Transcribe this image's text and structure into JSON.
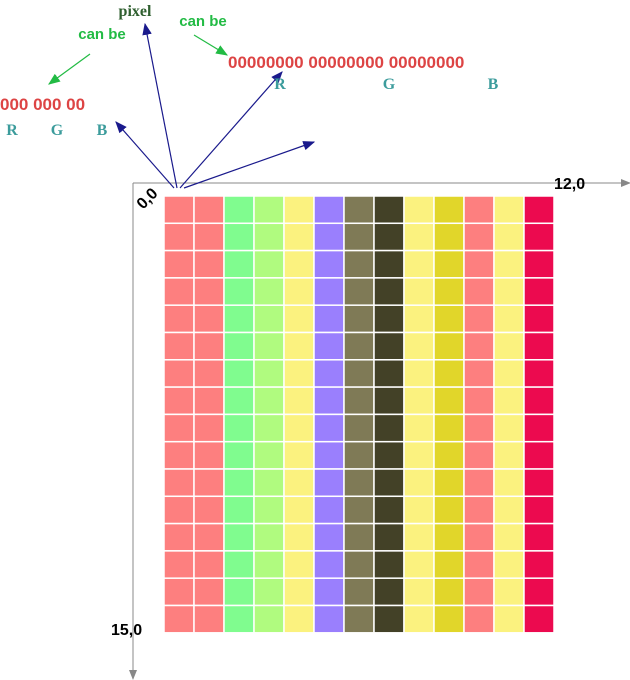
{
  "labels": {
    "pixel": "pixel",
    "can_be_left": "can be",
    "can_be_right": "can be"
  },
  "short_format": {
    "bits": "000 000 00",
    "channels": [
      "R",
      "G",
      "B"
    ]
  },
  "long_format": {
    "bits": "00000000 00000000 00000000",
    "channels": [
      "R",
      "G",
      "B"
    ]
  },
  "axes": {
    "origin": "0,0",
    "x_end": "12,0",
    "y_end": "15,0"
  }
}
